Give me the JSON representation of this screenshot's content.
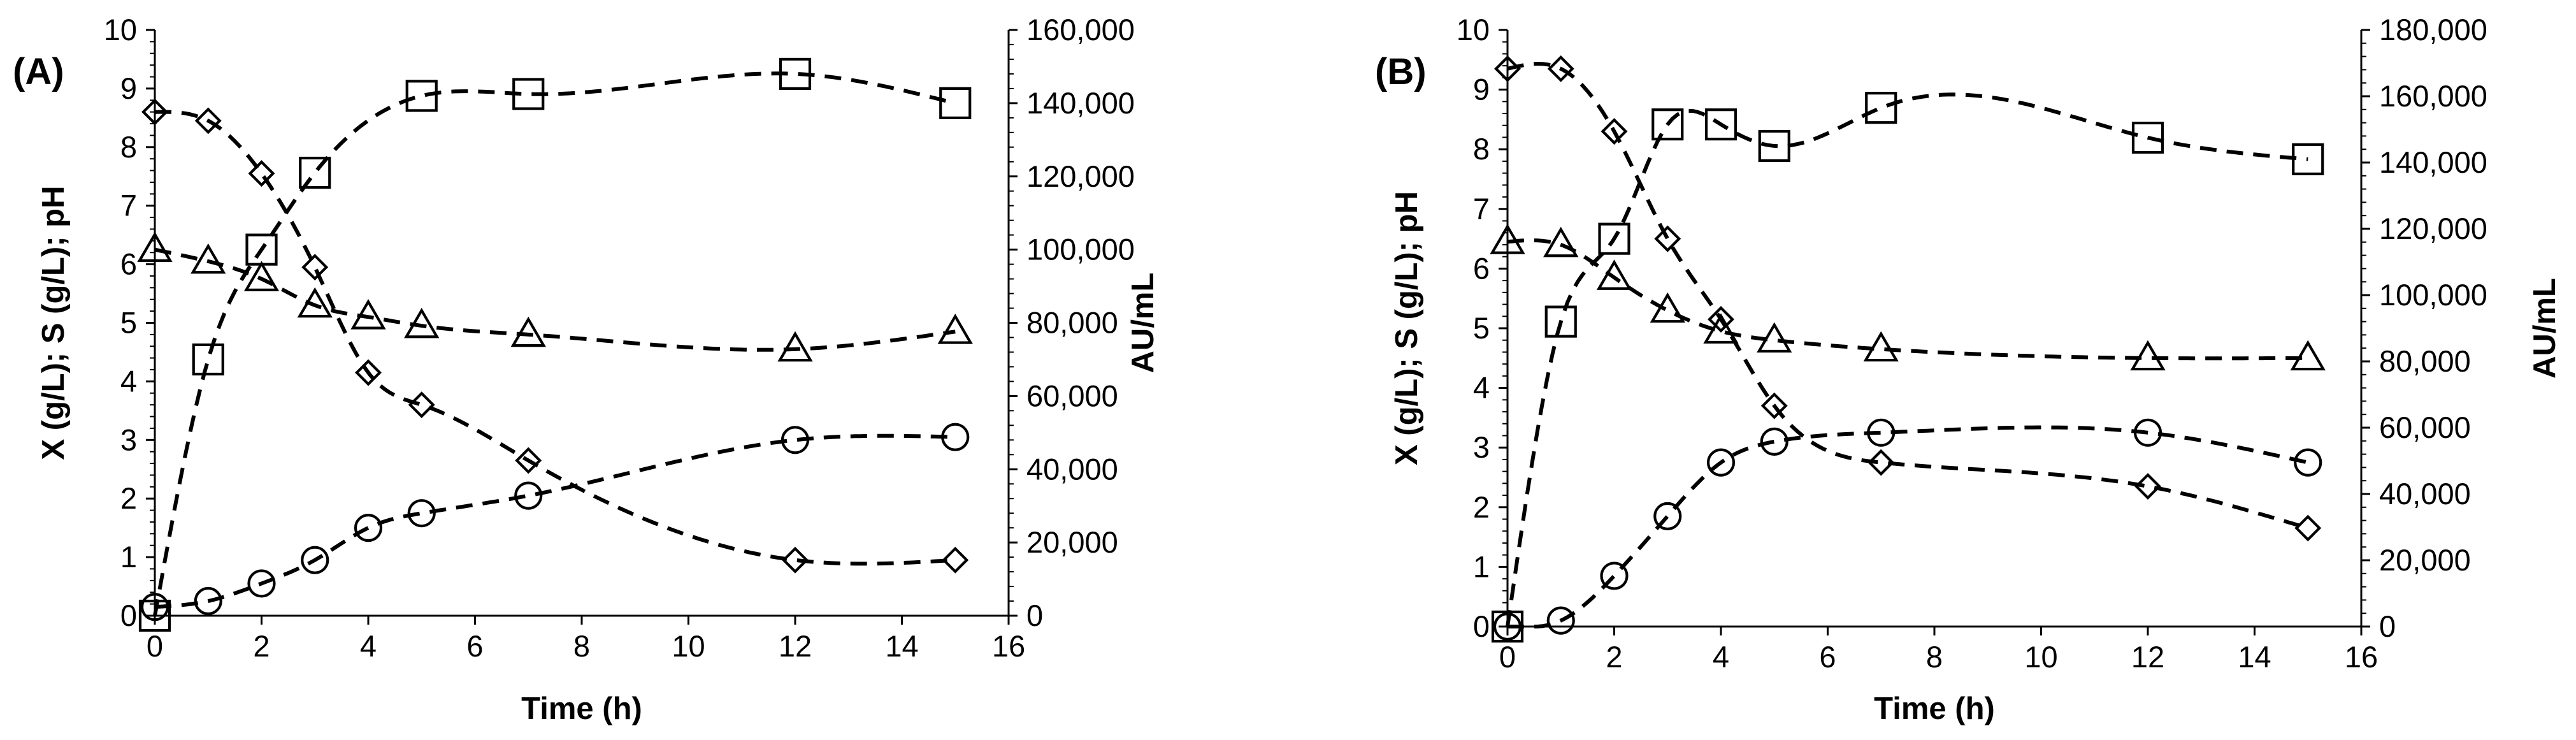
{
  "figure": {
    "background": "#ffffff",
    "line_color": "#000000"
  },
  "chart_data": [
    {
      "type": "scatter",
      "panel_label": "(A)",
      "xlabel": "Time (h)",
      "ylabel_left": "X (g/L); S (g/L); pH",
      "ylabel_right": "AU/mL",
      "xlim": [
        0,
        16
      ],
      "ylim_left": [
        0,
        10
      ],
      "ylim_right": [
        0,
        160000
      ],
      "x_ticks": [
        "0",
        "2",
        "4",
        "6",
        "8",
        "10",
        "12",
        "14",
        "16"
      ],
      "y_ticks_left": [
        "0",
        "1",
        "2",
        "3",
        "4",
        "5",
        "6",
        "7",
        "8",
        "9",
        "10"
      ],
      "y_ticks_right": [
        "0",
        "20,000",
        "40,000",
        "60,000",
        "80,000",
        "100,000",
        "120,000",
        "140,000",
        "160,000"
      ],
      "grid": false,
      "legend": "none",
      "fit_lines": "dashed",
      "series": [
        {
          "marker": "square",
          "axis": "right",
          "x": [
            0,
            1,
            2,
            3,
            5,
            7,
            12,
            15
          ],
          "y": [
            0,
            70000,
            100000,
            121000,
            142000,
            142500,
            148000,
            140000
          ]
        },
        {
          "marker": "diamond",
          "axis": "left",
          "x": [
            0,
            1,
            2,
            3,
            4,
            5,
            7,
            12,
            15
          ],
          "y": [
            8.6,
            8.45,
            7.55,
            5.95,
            4.15,
            3.6,
            2.65,
            0.95,
            0.95
          ]
        },
        {
          "marker": "triangle",
          "axis": "left",
          "x": [
            0,
            1,
            2,
            3,
            4,
            5,
            7,
            12,
            15
          ],
          "y": [
            6.25,
            6.05,
            5.75,
            5.3,
            5.1,
            4.95,
            4.8,
            4.55,
            4.85
          ]
        },
        {
          "marker": "circle",
          "axis": "left",
          "x": [
            0,
            1,
            2,
            3,
            4,
            5,
            7,
            12,
            15
          ],
          "y": [
            0.15,
            0.25,
            0.55,
            0.95,
            1.5,
            1.75,
            2.05,
            3.0,
            3.05
          ]
        }
      ]
    },
    {
      "type": "scatter",
      "panel_label": "(B)",
      "xlabel": "Time (h)",
      "ylabel_left": "X (g/L); S (g/L); pH",
      "ylabel_right": "AU/mL",
      "xlim": [
        0,
        16
      ],
      "ylim_left": [
        0,
        10
      ],
      "ylim_right": [
        0,
        180000
      ],
      "x_ticks": [
        "0",
        "2",
        "4",
        "6",
        "8",
        "10",
        "12",
        "14",
        "16"
      ],
      "y_ticks_left": [
        "0",
        "1",
        "2",
        "3",
        "4",
        "5",
        "6",
        "7",
        "8",
        "9",
        "10"
      ],
      "y_ticks_right": [
        "0",
        "20,000",
        "40,000",
        "60,000",
        "80,000",
        "100,000",
        "120,000",
        "140,000",
        "160,000",
        "180,000"
      ],
      "grid": false,
      "legend": "none",
      "fit_lines": "dashed",
      "series": [
        {
          "marker": "square",
          "axis": "right",
          "x": [
            0,
            1,
            2,
            3,
            4,
            5,
            7,
            12,
            15
          ],
          "y": [
            0,
            92000,
            117000,
            151500,
            151500,
            145000,
            156500,
            147500,
            141000
          ]
        },
        {
          "marker": "diamond",
          "axis": "left",
          "x": [
            0,
            1,
            2,
            3,
            4,
            5,
            7,
            12,
            15
          ],
          "y": [
            9.35,
            9.35,
            8.3,
            6.5,
            5.15,
            3.7,
            2.75,
            2.35,
            1.65
          ]
        },
        {
          "marker": "triangle",
          "axis": "left",
          "x": [
            0,
            1,
            2,
            3,
            4,
            5,
            7,
            12,
            15
          ],
          "y": [
            6.45,
            6.4,
            5.85,
            5.3,
            4.95,
            4.8,
            4.65,
            4.5,
            4.5
          ]
        },
        {
          "marker": "circle",
          "axis": "left",
          "x": [
            0,
            1,
            2,
            3,
            4,
            5,
            7,
            12,
            15
          ],
          "y": [
            0.0,
            0.1,
            0.85,
            1.85,
            2.75,
            3.1,
            3.25,
            3.25,
            2.75
          ]
        }
      ]
    }
  ]
}
